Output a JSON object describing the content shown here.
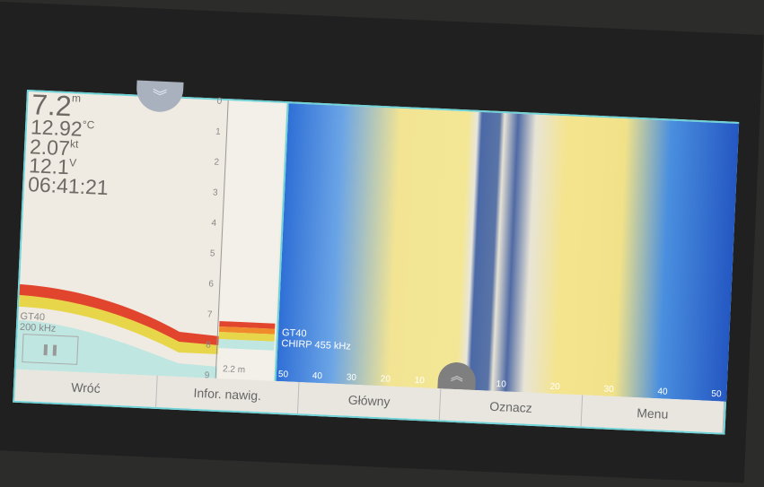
{
  "readouts": {
    "depth": "7.2",
    "depth_unit": "m",
    "temp": "12.92",
    "temp_unit": "°C",
    "speed": "2.07",
    "speed_unit": "kt",
    "voltage": "12.1",
    "voltage_unit": "V",
    "time": "06:41:21"
  },
  "traditional": {
    "transducer": "GT40",
    "frequency": "200 kHz",
    "depth_ticks": [
      "0",
      "1",
      "2",
      "3",
      "4",
      "5",
      "6",
      "7",
      "8",
      "9"
    ],
    "range_label": "2.2 m",
    "pause_icon": "pause-icon"
  },
  "sidevu": {
    "transducer": "GT40",
    "frequency": "CHIRP 455 kHz",
    "scale_left": [
      "50",
      "40",
      "30",
      "20",
      "10"
    ],
    "scale_right": [
      "10",
      "20",
      "30",
      "40",
      "50"
    ]
  },
  "softkeys": [
    "Wróć",
    "Infor. nawig.",
    "Główny",
    "Oznacz",
    "Menu"
  ],
  "colors": {
    "frame": "#6fd3d8",
    "sonar_blue": "#2f6fd6",
    "sonar_yellow": "#f2e493",
    "bottom_red": "#e2452e"
  }
}
